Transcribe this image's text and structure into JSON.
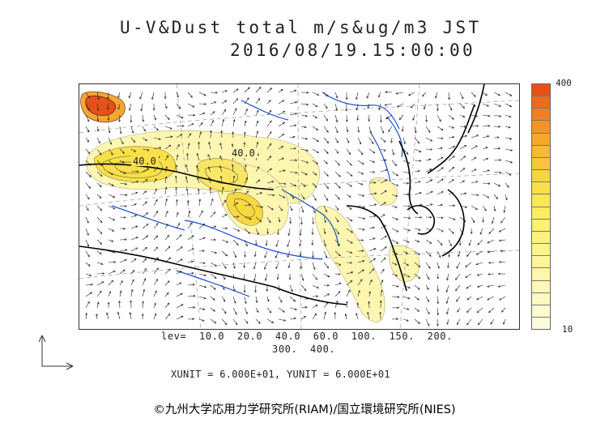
{
  "title": {
    "line1": "U-V&Dust total m/s&ug/m3 JST",
    "line2": "2016/08/19.15:00:00"
  },
  "map": {
    "contour_labels": [
      "40.0",
      "40.0"
    ],
    "coastline_color": "#000000",
    "river_color": "#1a4fd8",
    "gridline_color": "#9a9a9a"
  },
  "colorbar": {
    "max_label": "400",
    "min_label": "10",
    "colors": [
      "#e8501a",
      "#ee6a1c",
      "#f08020",
      "#f39424",
      "#f5a82a",
      "#f7ba30",
      "#f8c838",
      "#f9d440",
      "#fadf4a",
      "#fbe654",
      "#fcec60",
      "#fdf06e",
      "#fdf27e",
      "#fdf48e",
      "#fdf59c",
      "#fdf6aa",
      "#fef7b8",
      "#fef8c4",
      "#fefad0",
      "#fefbdc"
    ]
  },
  "levels": {
    "line1": "lev=  10.0  20.0  40.0  60.0  100.  150.  200.",
    "line2": "300.  400."
  },
  "units": "XUNIT = 6.000E+01, YUNIT = 6.000E+01",
  "credit": "©九州大学応用力学研究所(RIAM)/国立環境研究所(NIES)"
}
